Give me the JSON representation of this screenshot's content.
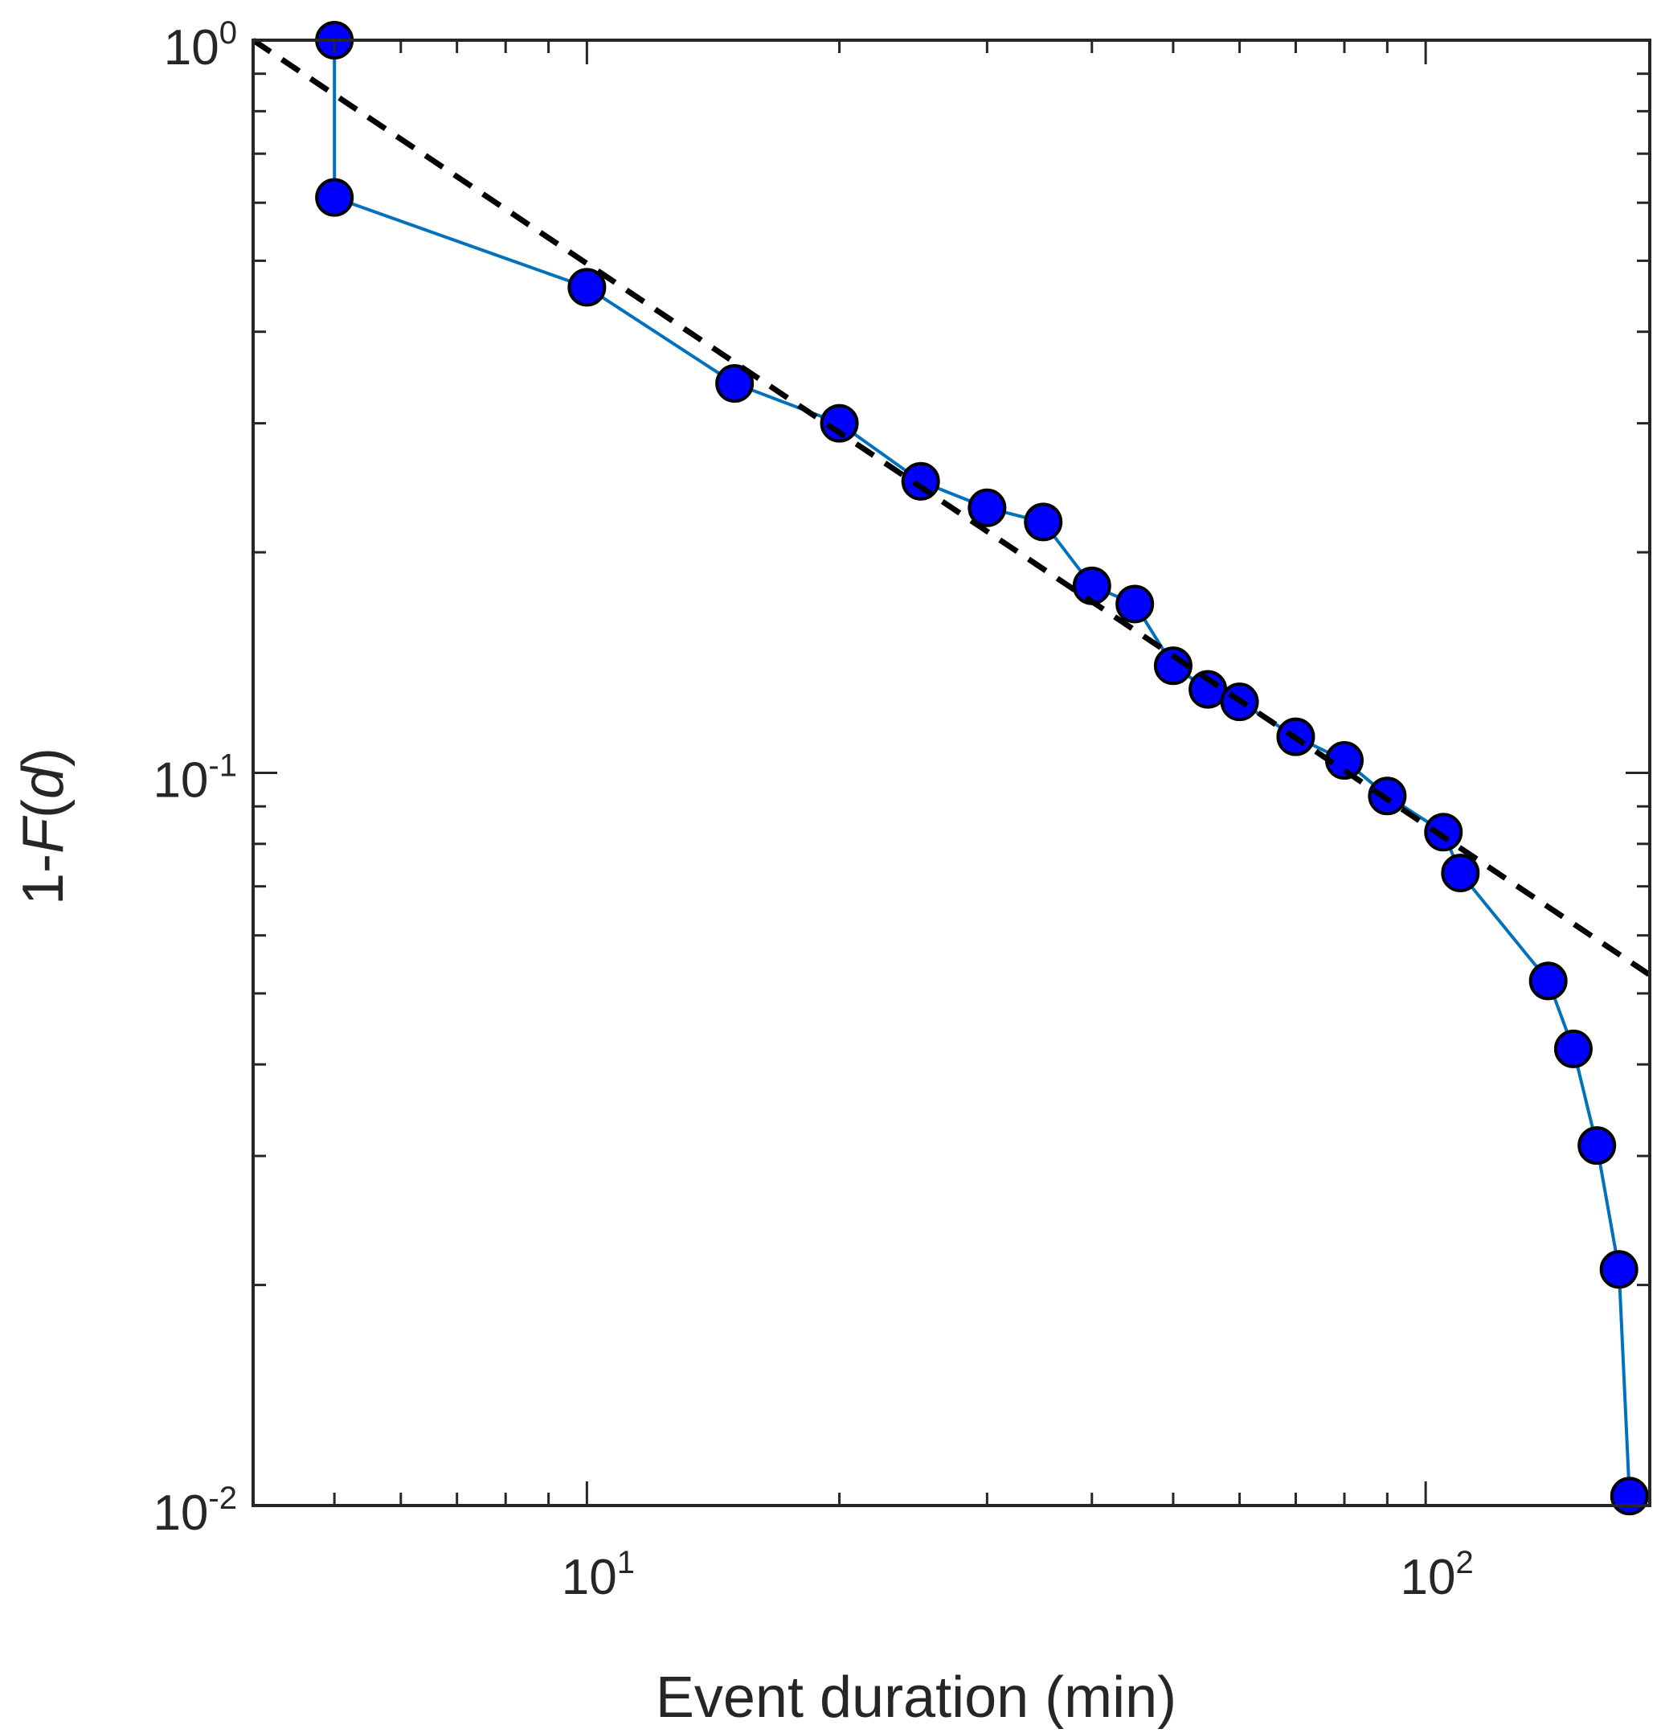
{
  "chart_data": {
    "type": "line",
    "xlabel": "Event duration (min)",
    "ylabel_prefix": "1-",
    "ylabel_func": "F",
    "ylabel_paren_open": "(",
    "ylabel_var": "d",
    "ylabel_paren_close": ")",
    "xscale": "log",
    "yscale": "log",
    "xlim": [
      4,
      185
    ],
    "ylim": [
      0.01,
      1
    ],
    "grid": false,
    "x_tick_labels": [
      {
        "value": 10,
        "base": "10",
        "exp": "1"
      },
      {
        "value": 100,
        "base": "10",
        "exp": "2"
      }
    ],
    "y_tick_labels": [
      {
        "value": 1,
        "base": "10",
        "exp": "0"
      },
      {
        "value": 0.1,
        "base": "10",
        "exp": "-1"
      },
      {
        "value": 0.01,
        "base": "10",
        "exp": "-2"
      }
    ],
    "series": [
      {
        "style": "line-markers",
        "line_color": "#0072BD",
        "marker_fill": "#0000FF",
        "marker_edge": "#000000",
        "x": [
          5,
          5,
          10,
          15,
          20,
          25,
          30,
          35,
          40,
          45,
          50,
          55,
          60,
          70,
          80,
          90,
          105,
          110,
          140,
          150,
          160,
          170,
          175
        ],
        "y": [
          1.0,
          0.61,
          0.46,
          0.34,
          0.3,
          0.25,
          0.23,
          0.22,
          0.18,
          0.17,
          0.14,
          0.13,
          0.125,
          0.112,
          0.104,
          0.093,
          0.083,
          0.073,
          0.052,
          0.042,
          0.031,
          0.021,
          0.0103
        ]
      },
      {
        "style": "fit-dashed",
        "line_color": "#000000",
        "x": [
          4,
          185
        ],
        "y": [
          1.0,
          0.053
        ]
      }
    ]
  }
}
